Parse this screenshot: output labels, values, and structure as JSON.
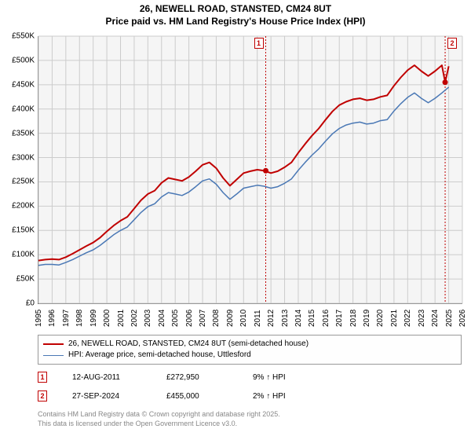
{
  "title_line1": "26, NEWELL ROAD, STANSTED, CM24 8UT",
  "title_line2": "Price paid vs. HM Land Registry's House Price Index (HPI)",
  "chart": {
    "type": "line",
    "background_color": "#f5f5f5",
    "grid_color": "#cccccc",
    "border_color": "#666666",
    "x_years": [
      1995,
      1996,
      1997,
      1998,
      1999,
      2000,
      2001,
      2002,
      2003,
      2004,
      2005,
      2006,
      2007,
      2008,
      2009,
      2010,
      2011,
      2012,
      2013,
      2014,
      2015,
      2016,
      2017,
      2018,
      2019,
      2020,
      2021,
      2022,
      2023,
      2024,
      2025,
      2026
    ],
    "y_ticks": [
      0,
      50,
      100,
      150,
      200,
      250,
      300,
      350,
      400,
      450,
      500,
      550
    ],
    "y_tick_labels": [
      "£0",
      "£50K",
      "£100K",
      "£150K",
      "£200K",
      "£250K",
      "£300K",
      "£350K",
      "£400K",
      "£450K",
      "£500K",
      "£550K"
    ],
    "ylim": [
      0,
      550
    ],
    "xlim": [
      1995,
      2026
    ],
    "series_red": {
      "color": "#c00000",
      "width": 2,
      "label": "26, NEWELL ROAD, STANSTED, CM24 8UT (semi-detached house)",
      "points": [
        [
          1995,
          88
        ],
        [
          1995.5,
          90
        ],
        [
          1996,
          91
        ],
        [
          1996.5,
          90
        ],
        [
          1997,
          95
        ],
        [
          1997.5,
          102
        ],
        [
          1998,
          110
        ],
        [
          1998.5,
          118
        ],
        [
          1999,
          125
        ],
        [
          1999.5,
          135
        ],
        [
          2000,
          148
        ],
        [
          2000.5,
          160
        ],
        [
          2001,
          170
        ],
        [
          2001.5,
          178
        ],
        [
          2002,
          195
        ],
        [
          2002.5,
          212
        ],
        [
          2003,
          225
        ],
        [
          2003.5,
          232
        ],
        [
          2004,
          248
        ],
        [
          2004.5,
          258
        ],
        [
          2005,
          255
        ],
        [
          2005.5,
          252
        ],
        [
          2006,
          260
        ],
        [
          2006.5,
          272
        ],
        [
          2007,
          285
        ],
        [
          2007.5,
          290
        ],
        [
          2008,
          278
        ],
        [
          2008.5,
          258
        ],
        [
          2009,
          242
        ],
        [
          2009.5,
          255
        ],
        [
          2010,
          268
        ],
        [
          2010.5,
          272
        ],
        [
          2011,
          275
        ],
        [
          2011.5,
          273
        ],
        [
          2012,
          268
        ],
        [
          2012.5,
          272
        ],
        [
          2013,
          280
        ],
        [
          2013.5,
          290
        ],
        [
          2014,
          310
        ],
        [
          2014.5,
          328
        ],
        [
          2015,
          345
        ],
        [
          2015.5,
          360
        ],
        [
          2016,
          378
        ],
        [
          2016.5,
          395
        ],
        [
          2017,
          408
        ],
        [
          2017.5,
          415
        ],
        [
          2018,
          420
        ],
        [
          2018.5,
          422
        ],
        [
          2019,
          418
        ],
        [
          2019.5,
          420
        ],
        [
          2020,
          425
        ],
        [
          2020.5,
          428
        ],
        [
          2021,
          448
        ],
        [
          2021.5,
          465
        ],
        [
          2022,
          480
        ],
        [
          2022.5,
          490
        ],
        [
          2023,
          478
        ],
        [
          2023.5,
          468
        ],
        [
          2024,
          478
        ],
        [
          2024.5,
          490
        ],
        [
          2024.74,
          455
        ],
        [
          2025,
          488
        ]
      ]
    },
    "series_blue": {
      "color": "#4a78b5",
      "width": 1.5,
      "label": "HPI: Average price, semi-detached house, Uttlesford",
      "points": [
        [
          1995,
          78
        ],
        [
          1995.5,
          80
        ],
        [
          1996,
          80
        ],
        [
          1996.5,
          79
        ],
        [
          1997,
          84
        ],
        [
          1997.5,
          90
        ],
        [
          1998,
          97
        ],
        [
          1998.5,
          104
        ],
        [
          1999,
          110
        ],
        [
          1999.5,
          119
        ],
        [
          2000,
          130
        ],
        [
          2000.5,
          141
        ],
        [
          2001,
          150
        ],
        [
          2001.5,
          157
        ],
        [
          2002,
          172
        ],
        [
          2002.5,
          187
        ],
        [
          2003,
          199
        ],
        [
          2003.5,
          205
        ],
        [
          2004,
          219
        ],
        [
          2004.5,
          228
        ],
        [
          2005,
          225
        ],
        [
          2005.5,
          222
        ],
        [
          2006,
          229
        ],
        [
          2006.5,
          240
        ],
        [
          2007,
          252
        ],
        [
          2007.5,
          256
        ],
        [
          2008,
          245
        ],
        [
          2008.5,
          228
        ],
        [
          2009,
          214
        ],
        [
          2009.5,
          225
        ],
        [
          2010,
          237
        ],
        [
          2010.5,
          240
        ],
        [
          2011,
          243
        ],
        [
          2011.5,
          241
        ],
        [
          2012,
          237
        ],
        [
          2012.5,
          240
        ],
        [
          2013,
          247
        ],
        [
          2013.5,
          256
        ],
        [
          2014,
          274
        ],
        [
          2014.5,
          290
        ],
        [
          2015,
          305
        ],
        [
          2015.5,
          318
        ],
        [
          2016,
          334
        ],
        [
          2016.5,
          349
        ],
        [
          2017,
          360
        ],
        [
          2017.5,
          367
        ],
        [
          2018,
          371
        ],
        [
          2018.5,
          373
        ],
        [
          2019,
          369
        ],
        [
          2019.5,
          371
        ],
        [
          2020,
          376
        ],
        [
          2020.5,
          378
        ],
        [
          2021,
          396
        ],
        [
          2021.5,
          411
        ],
        [
          2022,
          424
        ],
        [
          2022.5,
          433
        ],
        [
          2023,
          422
        ],
        [
          2023.5,
          413
        ],
        [
          2024,
          422
        ],
        [
          2024.5,
          433
        ],
        [
          2025,
          445
        ]
      ]
    },
    "events": [
      {
        "num": "1",
        "x": 2011.62,
        "date": "12-AUG-2011",
        "price": "£272,950",
        "hpi_text": "9% ↑ HPI",
        "marker_pos": "left"
      },
      {
        "num": "2",
        "x": 2024.74,
        "date": "27-SEP-2024",
        "price": "£455,000",
        "hpi_text": "2% ↑ HPI",
        "marker_pos": "right"
      }
    ],
    "event_line_color": "#c00000",
    "event_marker_border": "#c00000",
    "price_point_color": "#c00000",
    "label_fontsize": 10,
    "title_fontsize": 12
  },
  "copyright_line1": "Contains HM Land Registry data © Crown copyright and database right 2025.",
  "copyright_line2": "This data is licensed under the Open Government Licence v3.0."
}
